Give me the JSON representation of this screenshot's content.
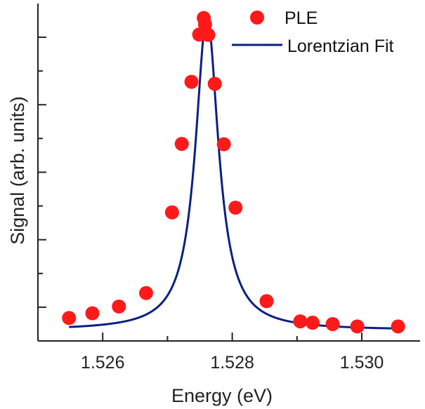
{
  "chart_data": {
    "type": "scatter",
    "xlabel": "Energy (eV)",
    "ylabel": "Signal (arb. units)",
    "xlim": [
      1.525,
      1.5309
    ],
    "ylim": [
      0,
      1.0
    ],
    "x_ticks": [
      1.526,
      1.528,
      1.53
    ],
    "x_tick_labels": [
      "1.526",
      "1.528",
      "1.530"
    ],
    "y_major_ticks": [
      0.1,
      0.3,
      0.5,
      0.7,
      0.9
    ],
    "y_tick_labels_shown": false,
    "grid": false,
    "legend_position": "top-right",
    "series": [
      {
        "name": "PLE",
        "kind": "points",
        "color": "#ff1a1a",
        "x": [
          1.52548,
          1.52584,
          1.52625,
          1.52667,
          1.52707,
          1.52722,
          1.52737,
          1.52749,
          1.52756,
          1.52758,
          1.52763,
          1.52773,
          1.52787,
          1.52805,
          1.52853,
          1.52905,
          1.52924,
          1.52955,
          1.52993,
          1.53056
        ],
        "y": [
          0.068,
          0.082,
          0.102,
          0.142,
          0.381,
          0.584,
          0.768,
          0.908,
          0.957,
          0.938,
          0.907,
          0.762,
          0.583,
          0.395,
          0.118,
          0.058,
          0.054,
          0.05,
          0.043,
          0.043
        ]
      },
      {
        "name": "Lorentzian Fit",
        "kind": "line",
        "color": "#0b1f82",
        "model": {
          "center": 1.52761,
          "hwhm": 0.000215,
          "amplitude": 0.93,
          "baseline": 0.032
        },
        "x_range": [
          1.52548,
          1.53056
        ]
      }
    ]
  }
}
